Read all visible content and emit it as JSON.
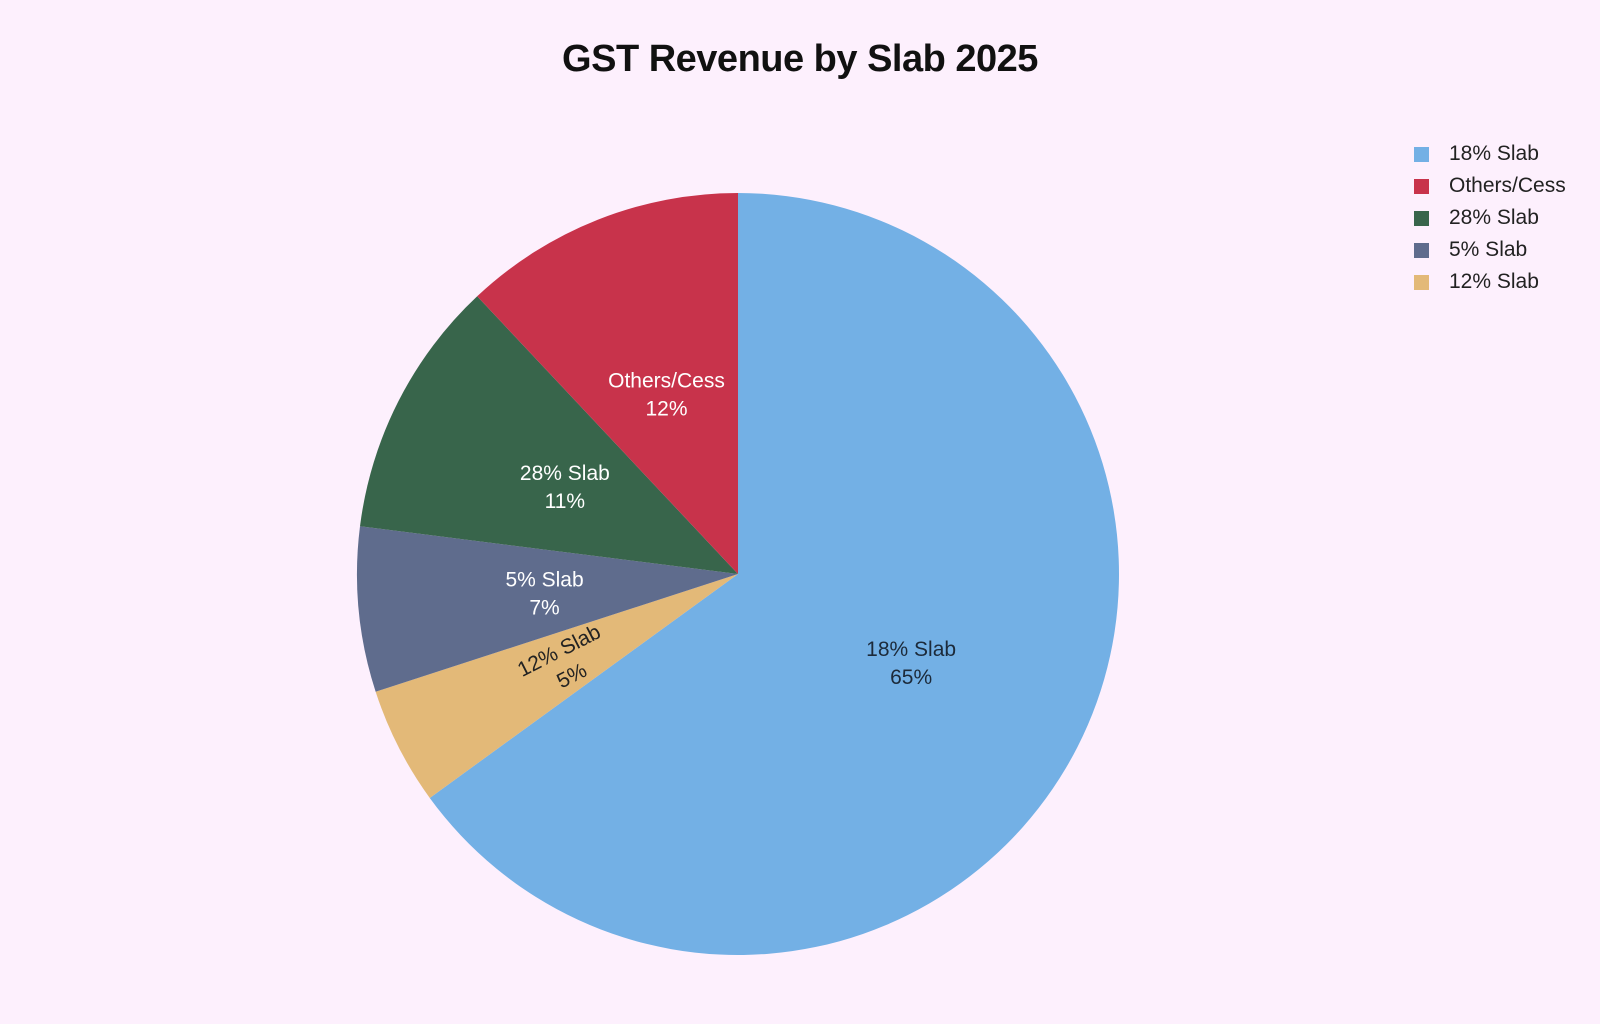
{
  "chart_data": {
    "type": "pie",
    "title": "GST Revenue by Slab 2025",
    "legend_position": "top-right",
    "slices": [
      {
        "name": "18% Slab",
        "value": 65,
        "label_value": "65%",
        "color": "#73b0e5",
        "text_color": "#1c2a3a"
      },
      {
        "name": "12% Slab",
        "value": 5,
        "label_value": "5%",
        "color": "#e3b978",
        "text_color": "#222222"
      },
      {
        "name": "5% Slab",
        "value": 7,
        "label_value": "7%",
        "color": "#5f6c8d",
        "text_color": "#ffffff"
      },
      {
        "name": "28% Slab",
        "value": 11,
        "label_value": "11%",
        "color": "#38654b",
        "text_color": "#ffffff"
      },
      {
        "name": "Others/Cess",
        "value": 12,
        "label_value": "12%",
        "color": "#c8334b",
        "text_color": "#ffffff"
      }
    ],
    "legend": [
      {
        "name": "18% Slab",
        "color": "#73b0e5"
      },
      {
        "name": "Others/Cess",
        "color": "#c8334b"
      },
      {
        "name": "28% Slab",
        "color": "#38654b"
      },
      {
        "name": "5% Slab",
        "color": "#5f6c8d"
      },
      {
        "name": "12% Slab",
        "color": "#e3b978"
      }
    ]
  }
}
